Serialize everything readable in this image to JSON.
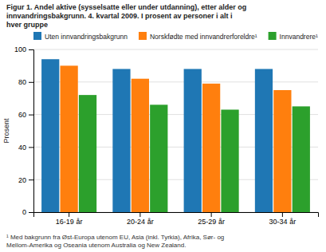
{
  "chart_data": {
    "type": "bar",
    "title": "Figur 1. Andel aktive (sysselsatte eller under utdanning), etter alder og\ninnvandringsbakgrunn. 4. kvartal 2009. I prosent av personer i alt i\nhver gruppe",
    "ylabel": "Prosent",
    "categories": [
      "16-19 år",
      "20-24 år",
      "25-29 år",
      "30-34 år"
    ],
    "series": [
      {
        "name": "Uten innvandringsbakgrunn",
        "values": [
          94,
          88,
          88,
          88
        ]
      },
      {
        "name": "Norskfødte med innvandrerforeldre¹",
        "values": [
          90,
          82,
          79,
          75
        ]
      },
      {
        "name": "Innvandrere¹",
        "values": [
          72,
          66,
          63,
          65
        ]
      }
    ],
    "ylim": [
      0,
      100
    ],
    "yticks": [
      0,
      20,
      40,
      60,
      80,
      100
    ],
    "grid": true,
    "legend": "top",
    "annotations": [
      "¹ Med bakgrunn fra Øst-Europa utenom EU, Asia (inkl. Tyrkia), Afrika, Sør- og\nMellom-Amerika og Oseania utenom Australia og New Zealand."
    ]
  }
}
